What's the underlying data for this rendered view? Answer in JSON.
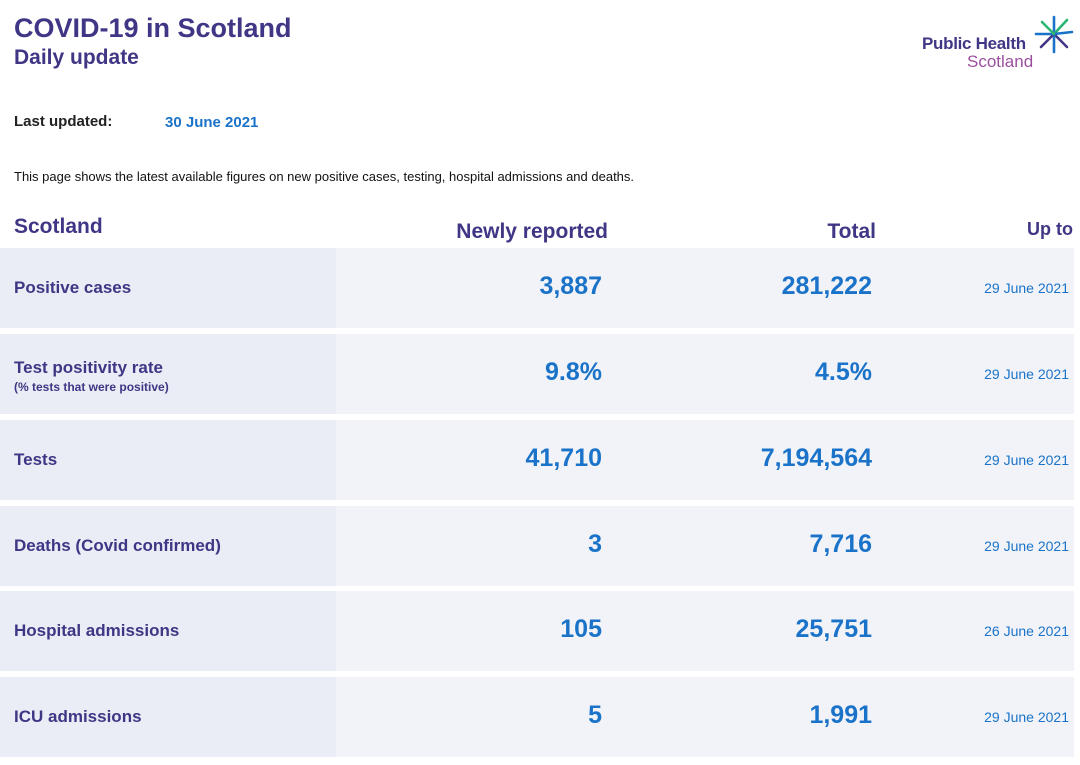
{
  "header": {
    "title": "COVID-19 in Scotland",
    "subtitle": "Daily update"
  },
  "logo": {
    "line1": "Public Health",
    "line2": "Scotland",
    "icon": "star-burst-icon",
    "colors": {
      "primary": "#3f3685",
      "secondary": "#9b4f9c",
      "accent": "#1a73c8"
    }
  },
  "last_updated": {
    "label": "Last updated:",
    "value": "30 June 2021"
  },
  "intro": "This page shows the latest available figures on new positive cases, testing, hospital admissions and deaths.",
  "table": {
    "headers": {
      "region": "Scotland",
      "newly_reported": "Newly reported",
      "total": "Total",
      "up_to": "Up to"
    },
    "rows": [
      {
        "label": "Positive cases",
        "sublabel": "",
        "newly_reported": "3,887",
        "total": "281,222",
        "up_to": "29 June 2021"
      },
      {
        "label": "Test positivity rate",
        "sublabel": "(% tests that were positive)",
        "newly_reported": "9.8%",
        "total": "4.5%",
        "up_to": "29 June 2021"
      },
      {
        "label": "Tests",
        "sublabel": "",
        "newly_reported": "41,710",
        "total": "7,194,564",
        "up_to": "29 June 2021"
      },
      {
        "label": "Deaths (Covid confirmed)",
        "sublabel": "",
        "newly_reported": "3",
        "total": "7,716",
        "up_to": "29 June 2021"
      },
      {
        "label": "Hospital admissions",
        "sublabel": "",
        "newly_reported": "105",
        "total": "25,751",
        "up_to": "26 June 2021"
      },
      {
        "label": "ICU admissions",
        "sublabel": "",
        "newly_reported": "5",
        "total": "1,991",
        "up_to": "29 June 2021"
      }
    ]
  },
  "colors": {
    "heading": "#3f3685",
    "value": "#1a73c8",
    "label_cell_bg": "#eaedf5",
    "value_cell_bg": "#f1f3f9"
  }
}
